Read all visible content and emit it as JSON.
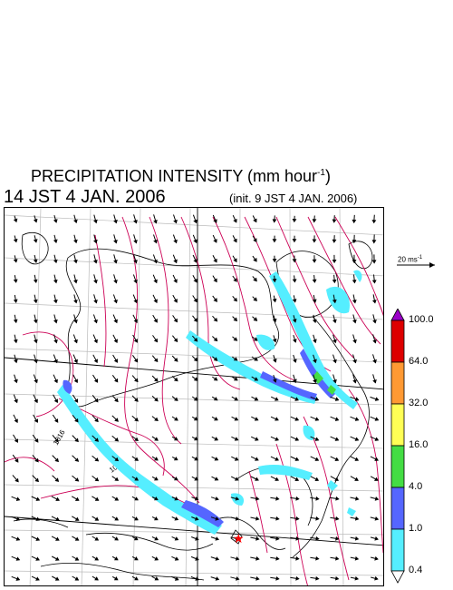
{
  "header": {
    "title": "PRECIPITATION INTENSITY (mm hour",
    "title_exp": "-1",
    "title_end": ")",
    "time": "14 JST 4 JAN. 2006",
    "init": "(init. 9 JST 4 JAN. 2006)"
  },
  "reference_vector": {
    "label": "20 ms",
    "label_exp": "-1"
  },
  "contours": {
    "label_a": "1016",
    "label_b": "1008"
  },
  "colorbar": {
    "labels": [
      "100.0",
      "64.0",
      "32.0",
      "16.0",
      "4.0",
      "1.0",
      "0.4"
    ],
    "colors": [
      "#9b00c8",
      "#dd0000",
      "#ff9933",
      "#ffff55",
      "#44dd44",
      "#5566ff",
      "#55eeff",
      "#ffffff"
    ]
  },
  "colors": {
    "contour": "#cc0055",
    "rain_light": "#55eeff",
    "rain_mid": "#5566ff",
    "wind": "#000000",
    "marker": "#ff0000"
  }
}
